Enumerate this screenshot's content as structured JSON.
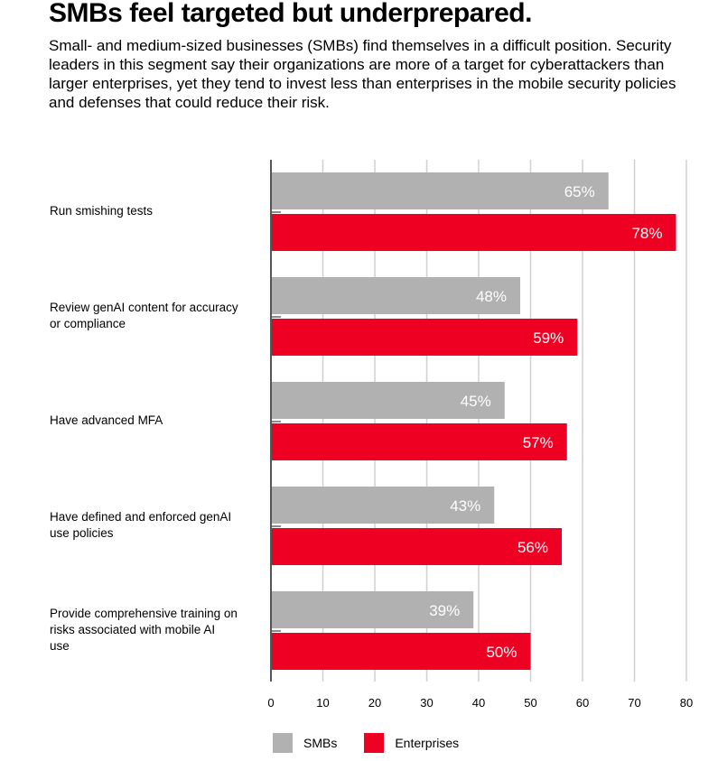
{
  "title": "SMBs feel targeted but underprepared.",
  "subtitle": "Small- and medium-sized businesses (SMBs) find themselves in a difficult position. Security leaders in this segment say their organizations are more of a target for cyberattackers than larger enterprises, yet they tend to invest less than enterprises in the mobile security policies and defenses that could reduce their risk.",
  "chart_data": {
    "type": "bar",
    "orientation": "horizontal",
    "categories": [
      "Run smishing tests",
      "Review genAI content for accuracy or compliance",
      "Have advanced MFA",
      "Have defined and enforced genAI use policies",
      "Provide comprehensive training on risks associated with mobile AI use"
    ],
    "series": [
      {
        "name": "SMBs",
        "color": "#b1b1b1",
        "values": [
          65,
          48,
          45,
          43,
          39
        ],
        "labels": [
          "65%",
          "48%",
          "45%",
          "43%",
          "39%"
        ]
      },
      {
        "name": "Enterprises",
        "color": "#ee0022",
        "values": [
          78,
          59,
          57,
          56,
          50
        ],
        "labels": [
          "78%",
          "59%",
          "57%",
          "56%",
          "50%"
        ]
      }
    ],
    "xlim": [
      0,
      80
    ],
    "xticks": [
      "0",
      "10",
      "20",
      "30",
      "40",
      "50",
      "60",
      "70",
      "80"
    ],
    "grid": true,
    "legend": "bottom"
  }
}
